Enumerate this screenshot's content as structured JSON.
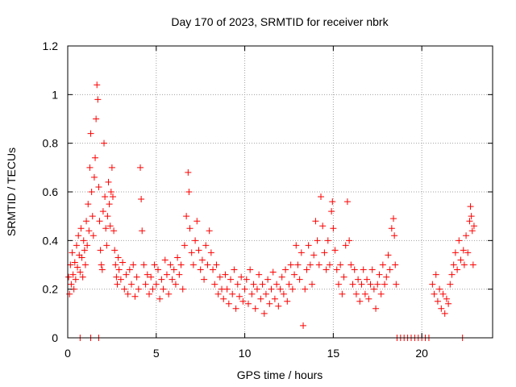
{
  "chart_data": {
    "type": "scatter",
    "title": "Day 170 of 2023, SRMTID for receiver nbrk",
    "xlabel": "GPS time / hours",
    "ylabel": "SRMTID / TECUs",
    "xlim": [
      0,
      24
    ],
    "ylim": [
      0,
      1.2
    ],
    "x_ticks": [
      0,
      5,
      10,
      15,
      20
    ],
    "y_ticks": [
      0,
      0.2,
      0.4,
      0.6,
      0.8,
      1,
      1.2
    ],
    "x_tick_labels": [
      "0",
      "5",
      "10",
      "15",
      "20"
    ],
    "y_tick_labels": [
      "0",
      "0.2",
      "0.4",
      "0.6",
      "0.8",
      "1",
      "1.2"
    ],
    "grid": true,
    "marker": "+",
    "color": "#ff0000",
    "series": [
      {
        "name": "SRMTID",
        "points": [
          [
            0.05,
            0.25
          ],
          [
            0.1,
            0.18
          ],
          [
            0.15,
            0.3
          ],
          [
            0.2,
            0.22
          ],
          [
            0.25,
            0.35
          ],
          [
            0.3,
            0.26
          ],
          [
            0.35,
            0.2
          ],
          [
            0.4,
            0.31
          ],
          [
            0.45,
            0.24
          ],
          [
            0.5,
            0.38
          ],
          [
            0.55,
            0.29
          ],
          [
            0.6,
            0.42
          ],
          [
            0.65,
            0.34
          ],
          [
            0.7,
            0.27
          ],
          [
            0.75,
            0.45
          ],
          [
            0.8,
            0.33
          ],
          [
            0.85,
            0.25
          ],
          [
            0.9,
            0.4
          ],
          [
            0.95,
            0.36
          ],
          [
            1.0,
            0.3
          ],
          [
            1.05,
            0.48
          ],
          [
            1.1,
            0.38
          ],
          [
            1.15,
            0.55
          ],
          [
            1.2,
            0.44
          ],
          [
            1.25,
            0.7
          ],
          [
            1.3,
            0.84
          ],
          [
            1.35,
            0.6
          ],
          [
            1.4,
            0.5
          ],
          [
            1.45,
            0.42
          ],
          [
            1.5,
            0.66
          ],
          [
            1.55,
            0.74
          ],
          [
            1.6,
            0.9
          ],
          [
            1.65,
            1.04
          ],
          [
            1.7,
            0.98
          ],
          [
            1.75,
            0.62
          ],
          [
            1.8,
            0.48
          ],
          [
            1.85,
            0.36
          ],
          [
            1.9,
            0.3
          ],
          [
            1.95,
            0.28
          ],
          [
            2.0,
            0.52
          ],
          [
            2.05,
            0.8
          ],
          [
            2.1,
            0.58
          ],
          [
            2.15,
            0.45
          ],
          [
            2.2,
            0.38
          ],
          [
            2.25,
            0.5
          ],
          [
            2.3,
            0.64
          ],
          [
            2.35,
            0.55
          ],
          [
            2.4,
            0.46
          ],
          [
            2.45,
            0.6
          ],
          [
            2.5,
            0.7
          ],
          [
            2.55,
            0.58
          ],
          [
            2.6,
            0.44
          ],
          [
            2.65,
            0.36
          ],
          [
            2.7,
            0.3
          ],
          [
            2.75,
            0.25
          ],
          [
            2.8,
            0.22
          ],
          [
            2.85,
            0.33
          ],
          [
            2.9,
            0.28
          ],
          [
            3.0,
            0.24
          ],
          [
            3.1,
            0.31
          ],
          [
            3.2,
            0.2
          ],
          [
            3.3,
            0.26
          ],
          [
            3.4,
            0.18
          ],
          [
            3.5,
            0.28
          ],
          [
            3.6,
            0.22
          ],
          [
            3.7,
            0.3
          ],
          [
            3.8,
            0.17
          ],
          [
            3.9,
            0.25
          ],
          [
            4.0,
            0.2
          ],
          [
            4.1,
            0.7
          ],
          [
            4.15,
            0.57
          ],
          [
            4.2,
            0.44
          ],
          [
            4.3,
            0.3
          ],
          [
            4.4,
            0.22
          ],
          [
            4.5,
            0.26
          ],
          [
            4.6,
            0.18
          ],
          [
            4.7,
            0.25
          ],
          [
            4.8,
            0.2
          ],
          [
            4.9,
            0.3
          ],
          [
            5.0,
            0.22
          ],
          [
            5.1,
            0.28
          ],
          [
            5.2,
            0.16
          ],
          [
            5.3,
            0.24
          ],
          [
            5.4,
            0.2
          ],
          [
            5.5,
            0.32
          ],
          [
            5.6,
            0.26
          ],
          [
            5.7,
            0.18
          ],
          [
            5.8,
            0.3
          ],
          [
            5.9,
            0.24
          ],
          [
            6.0,
            0.28
          ],
          [
            6.1,
            0.22
          ],
          [
            6.2,
            0.33
          ],
          [
            6.3,
            0.26
          ],
          [
            6.4,
            0.3
          ],
          [
            6.5,
            0.2
          ],
          [
            6.6,
            0.38
          ],
          [
            6.7,
            0.5
          ],
          [
            6.8,
            0.68
          ],
          [
            6.85,
            0.6
          ],
          [
            6.9,
            0.45
          ],
          [
            7.0,
            0.35
          ],
          [
            7.1,
            0.3
          ],
          [
            7.2,
            0.4
          ],
          [
            7.3,
            0.48
          ],
          [
            7.4,
            0.36
          ],
          [
            7.5,
            0.28
          ],
          [
            7.6,
            0.32
          ],
          [
            7.7,
            0.24
          ],
          [
            7.8,
            0.38
          ],
          [
            7.9,
            0.3
          ],
          [
            8.0,
            0.44
          ],
          [
            8.1,
            0.35
          ],
          [
            8.2,
            0.28
          ],
          [
            8.3,
            0.22
          ],
          [
            8.4,
            0.3
          ],
          [
            8.5,
            0.18
          ],
          [
            8.6,
            0.25
          ],
          [
            8.7,
            0.2
          ],
          [
            8.8,
            0.16
          ],
          [
            8.9,
            0.26
          ],
          [
            9.0,
            0.2
          ],
          [
            9.1,
            0.14
          ],
          [
            9.2,
            0.24
          ],
          [
            9.3,
            0.18
          ],
          [
            9.4,
            0.28
          ],
          [
            9.5,
            0.12
          ],
          [
            9.6,
            0.22
          ],
          [
            9.7,
            0.17
          ],
          [
            9.8,
            0.25
          ],
          [
            9.9,
            0.15
          ],
          [
            10.0,
            0.2
          ],
          [
            10.1,
            0.24
          ],
          [
            10.2,
            0.14
          ],
          [
            10.3,
            0.28
          ],
          [
            10.4,
            0.18
          ],
          [
            10.5,
            0.22
          ],
          [
            10.6,
            0.12
          ],
          [
            10.7,
            0.2
          ],
          [
            10.8,
            0.26
          ],
          [
            10.9,
            0.16
          ],
          [
            11.0,
            0.22
          ],
          [
            11.1,
            0.1
          ],
          [
            11.2,
            0.18
          ],
          [
            11.3,
            0.24
          ],
          [
            11.4,
            0.14
          ],
          [
            11.5,
            0.2
          ],
          [
            11.6,
            0.27
          ],
          [
            11.7,
            0.16
          ],
          [
            11.8,
            0.22
          ],
          [
            11.9,
            0.13
          ],
          [
            12.0,
            0.2
          ],
          [
            12.1,
            0.25
          ],
          [
            12.2,
            0.18
          ],
          [
            12.3,
            0.28
          ],
          [
            12.4,
            0.15
          ],
          [
            12.5,
            0.22
          ],
          [
            12.6,
            0.3
          ],
          [
            12.7,
            0.2
          ],
          [
            12.8,
            0.26
          ],
          [
            12.9,
            0.38
          ],
          [
            13.0,
            0.3
          ],
          [
            13.1,
            0.24
          ],
          [
            13.2,
            0.35
          ],
          [
            13.3,
            0.05
          ],
          [
            13.4,
            0.2
          ],
          [
            13.5,
            0.28
          ],
          [
            13.6,
            0.38
          ],
          [
            13.7,
            0.3
          ],
          [
            13.8,
            0.22
          ],
          [
            13.9,
            0.34
          ],
          [
            14.0,
            0.48
          ],
          [
            14.1,
            0.4
          ],
          [
            14.2,
            0.3
          ],
          [
            14.3,
            0.58
          ],
          [
            14.4,
            0.46
          ],
          [
            14.5,
            0.35
          ],
          [
            14.6,
            0.28
          ],
          [
            14.7,
            0.4
          ],
          [
            14.8,
            0.3
          ],
          [
            14.9,
            0.52
          ],
          [
            14.95,
            0.56
          ],
          [
            15.0,
            0.45
          ],
          [
            15.1,
            0.36
          ],
          [
            15.2,
            0.28
          ],
          [
            15.3,
            0.22
          ],
          [
            15.4,
            0.3
          ],
          [
            15.5,
            0.18
          ],
          [
            15.6,
            0.25
          ],
          [
            15.7,
            0.38
          ],
          [
            15.8,
            0.56
          ],
          [
            15.9,
            0.4
          ],
          [
            16.0,
            0.3
          ],
          [
            16.1,
            0.22
          ],
          [
            16.2,
            0.28
          ],
          [
            16.3,
            0.18
          ],
          [
            16.4,
            0.24
          ],
          [
            16.5,
            0.15
          ],
          [
            16.6,
            0.22
          ],
          [
            16.7,
            0.28
          ],
          [
            16.8,
            0.18
          ],
          [
            16.9,
            0.24
          ],
          [
            17.0,
            0.16
          ],
          [
            17.1,
            0.22
          ],
          [
            17.2,
            0.28
          ],
          [
            17.3,
            0.2
          ],
          [
            17.4,
            0.12
          ],
          [
            17.5,
            0.22
          ],
          [
            17.6,
            0.26
          ],
          [
            17.7,
            0.18
          ],
          [
            17.8,
            0.3
          ],
          [
            17.9,
            0.22
          ],
          [
            18.0,
            0.25
          ],
          [
            18.1,
            0.34
          ],
          [
            18.2,
            0.28
          ],
          [
            18.3,
            0.45
          ],
          [
            18.4,
            0.49
          ],
          [
            18.45,
            0.42
          ],
          [
            18.5,
            0.3
          ],
          [
            18.55,
            0.22
          ],
          [
            18.6,
            0.0
          ],
          [
            0.7,
            0.0
          ],
          [
            1.3,
            0.0
          ],
          [
            1.75,
            0.0
          ],
          [
            18.8,
            0.0
          ],
          [
            19.0,
            0.0
          ],
          [
            19.2,
            0.0
          ],
          [
            19.4,
            0.0
          ],
          [
            19.6,
            0.0
          ],
          [
            19.8,
            0.0
          ],
          [
            20.0,
            0.0
          ],
          [
            20.2,
            0.0
          ],
          [
            20.4,
            0.0
          ],
          [
            20.6,
            0.22
          ],
          [
            20.7,
            0.18
          ],
          [
            20.8,
            0.26
          ],
          [
            20.9,
            0.15
          ],
          [
            21.0,
            0.2
          ],
          [
            21.1,
            0.12
          ],
          [
            21.2,
            0.18
          ],
          [
            21.3,
            0.1
          ],
          [
            21.4,
            0.16
          ],
          [
            21.5,
            0.14
          ],
          [
            21.6,
            0.22
          ],
          [
            21.7,
            0.26
          ],
          [
            21.8,
            0.3
          ],
          [
            21.9,
            0.35
          ],
          [
            22.0,
            0.28
          ],
          [
            22.1,
            0.4
          ],
          [
            22.2,
            0.32
          ],
          [
            22.3,
            0.0
          ],
          [
            22.35,
            0.36
          ],
          [
            22.4,
            0.3
          ],
          [
            22.5,
            0.42
          ],
          [
            22.6,
            0.35
          ],
          [
            22.7,
            0.48
          ],
          [
            22.75,
            0.54
          ],
          [
            22.8,
            0.5
          ],
          [
            22.85,
            0.44
          ],
          [
            22.9,
            0.3
          ],
          [
            22.95,
            0.46
          ]
        ]
      }
    ]
  }
}
